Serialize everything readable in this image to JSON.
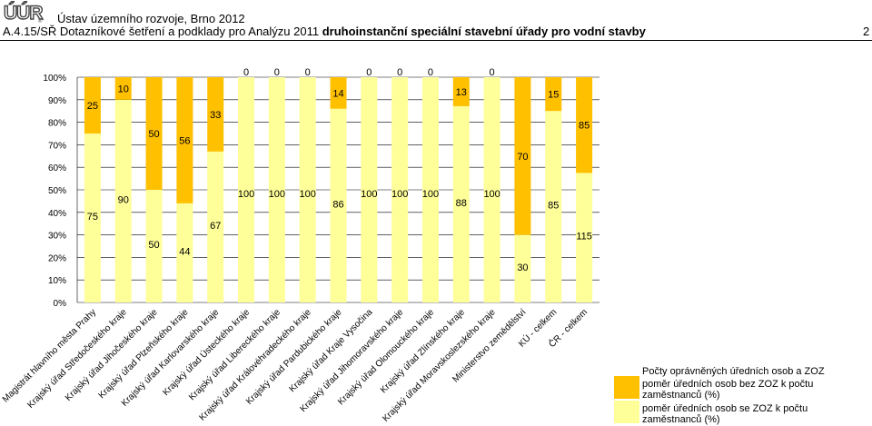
{
  "header": {
    "logo_text": "ÚÚR",
    "org_name": "Ústav územního rozvoje, Brno 2012",
    "title_prefix": "A.4.15/SŘ Dotazníkové šetření a podklady pro Analýzu 2011",
    "title_subject": "druhoinstanční speciální stavební úřady pro vodní stavby",
    "page_number": "2"
  },
  "colors": {
    "series_without_zoz": "#FFC000",
    "series_with_zoz": "#FFFF99",
    "gridline": "#000000"
  },
  "chart_data": {
    "type": "bar",
    "stacked": true,
    "normalized": true,
    "ylim": [
      0,
      100
    ],
    "yticks": [
      "0%",
      "10%",
      "20%",
      "30%",
      "40%",
      "50%",
      "60%",
      "70%",
      "80%",
      "90%",
      "100%"
    ],
    "categories": [
      "Magistrát hlavního města Prahy",
      "Krajský úřad Středočeského kraje",
      "Krajský úřad Jihočeského kraje",
      "Krajský úřad Plzeňského kraje",
      "Krajský úřad Karlovarského kraje",
      "Krajský úřad Ústeckého kraje",
      "Krajský úřad Libereckého kraje",
      "Krajský úřad Královéhradeckého kraje",
      "Krajský úřad Pardubického kraje",
      "Krajský úřad Kraje Vysočina",
      "Krajský úřad Jihomoravského kraje",
      "Krajský úřad Olomouckého kraje",
      "Krajský úřad Zlínského kraje",
      "Krajský úřad Moravskoslezského kraje",
      "Ministerstvo zemědělství",
      "KÚ - celkem",
      "ČR - celkem"
    ],
    "series": [
      {
        "name": "poměr úředních osob se ZOZ k počtu zaměstnanců (%)",
        "color": "#FFFF99",
        "values": [
          75,
          90,
          50,
          44,
          67,
          100,
          100,
          100,
          86,
          100,
          100,
          100,
          88,
          100,
          30,
          85,
          115
        ]
      },
      {
        "name": "poměr úředních osob bez ZOZ k počtu zaměstnanců (%)",
        "color": "#FFC000",
        "values": [
          25,
          10,
          50,
          56,
          33,
          0,
          0,
          0,
          14,
          0,
          0,
          0,
          13,
          0,
          70,
          15,
          85
        ]
      }
    ],
    "legend": {
      "title": "Počty oprávněných úředních osob a ZOZ",
      "entries": [
        "poměr úředních osob bez ZOZ k počtu zaměstnanců (%)",
        "poměr úředních osob se ZOZ k počtu zaměstnanců (%)"
      ],
      "position": "bottom-right"
    }
  }
}
